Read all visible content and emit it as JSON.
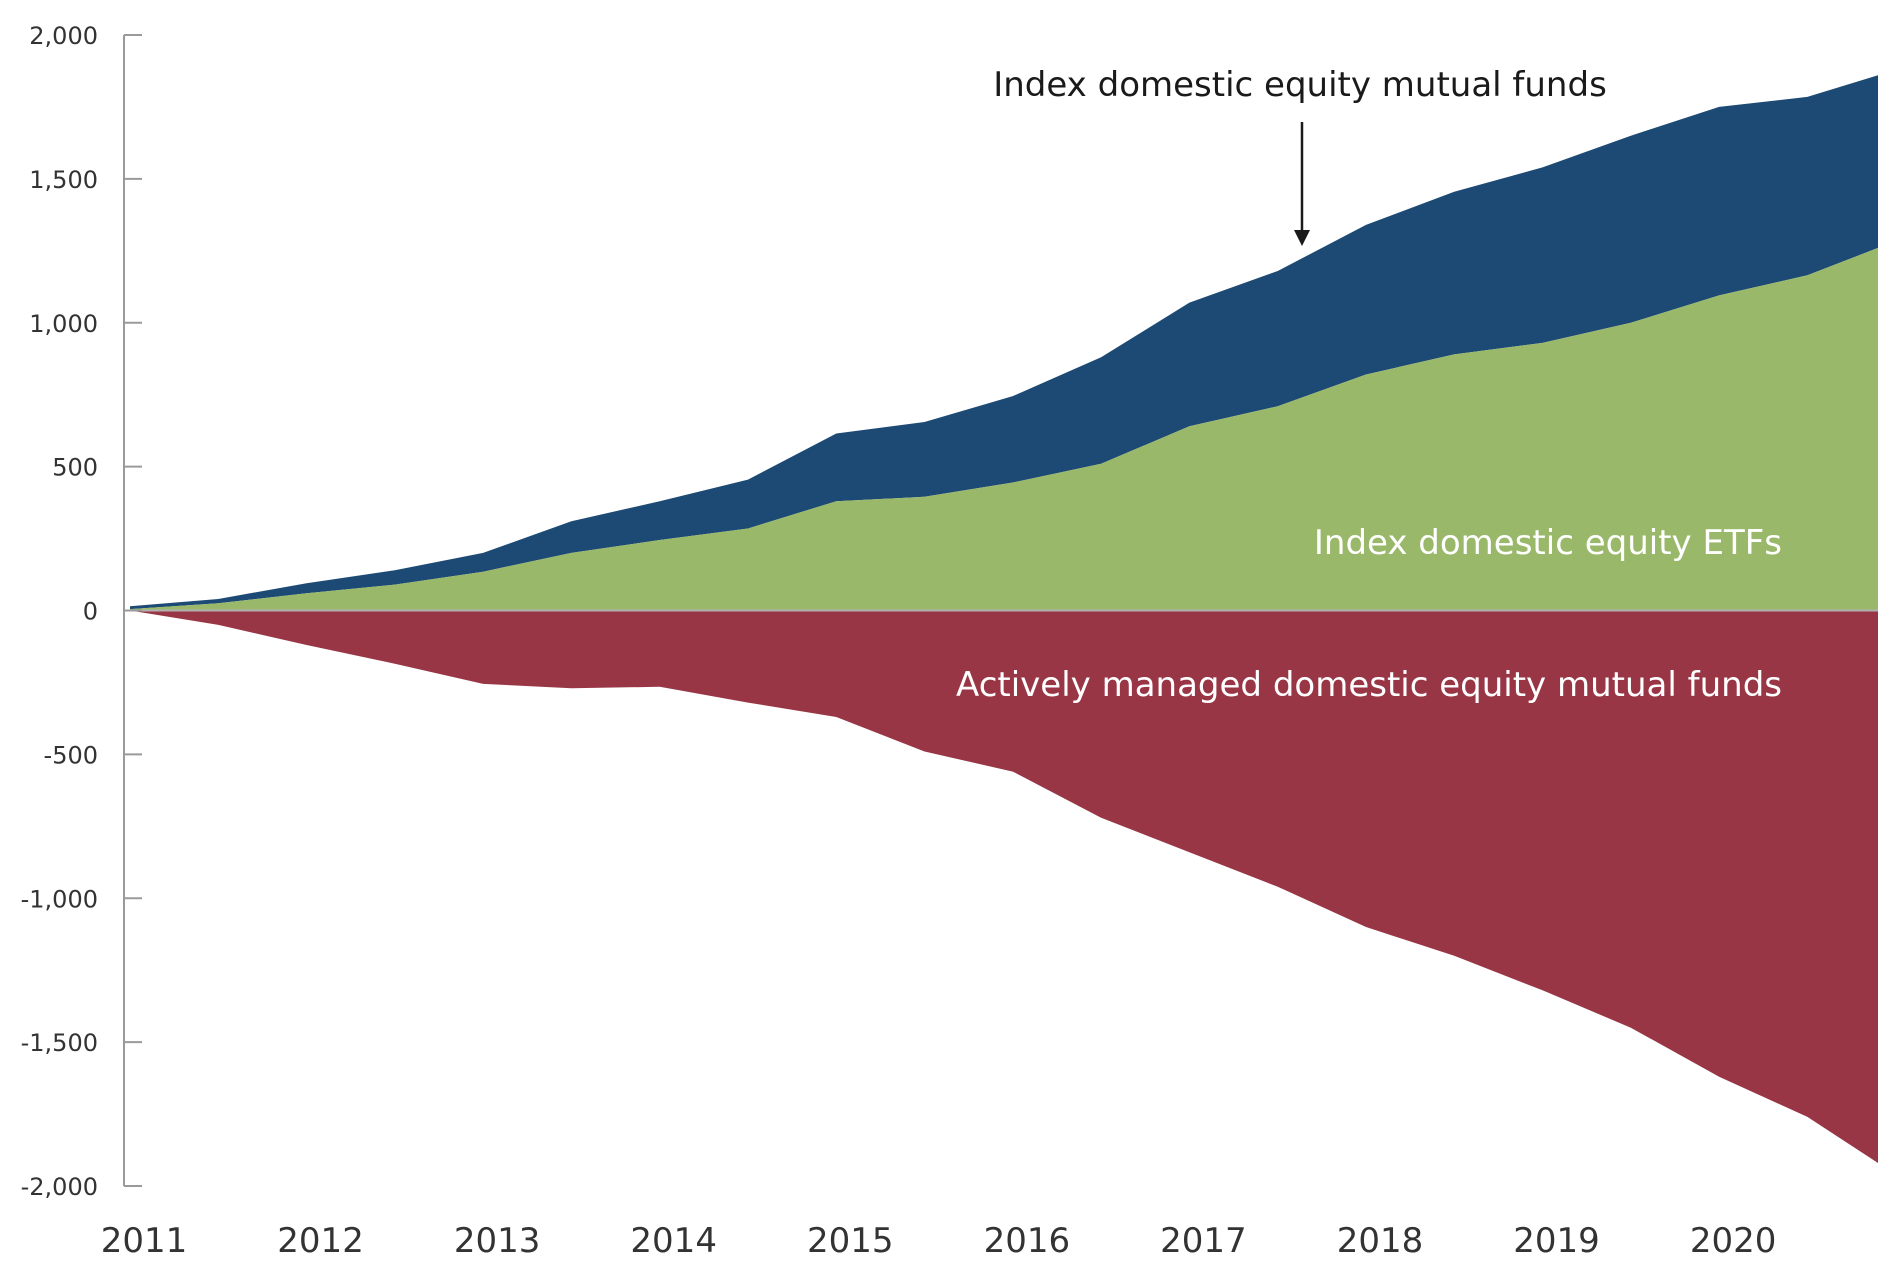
{
  "chart_data": {
    "type": "area",
    "x_ticks": [
      "2011",
      "2012",
      "2013",
      "2014",
      "2015",
      "2016",
      "2017",
      "2018",
      "2019",
      "2020"
    ],
    "y_ticks": [
      "2,000",
      "1,500",
      "1,000",
      "500",
      "0",
      "-500",
      "-1,000",
      "-1,500",
      "-2,000"
    ],
    "ylim": [
      -2000,
      2000
    ],
    "xlim": [
      2011.0,
      2020.9
    ],
    "stacked": true,
    "grid": false,
    "annotations": {
      "index_mutual_funds": "Index domestic equity mutual funds",
      "index_etfs": "Index domestic equity ETFs",
      "active_mutual_funds": "Actively managed domestic equity mutual funds"
    },
    "colors": {
      "index_mutual_funds": "#1c4a74",
      "index_etfs": "#9ab86a",
      "active_mutual_funds": "#993646"
    },
    "x": [
      2011.0,
      2011.5,
      2012.0,
      2012.5,
      2013.0,
      2013.5,
      2014.0,
      2014.5,
      2015.0,
      2015.5,
      2016.0,
      2016.5,
      2017.0,
      2017.5,
      2018.0,
      2018.5,
      2019.0,
      2019.5,
      2020.0,
      2020.5,
      2020.9
    ],
    "series": [
      {
        "key": "index_etfs",
        "values": [
          5,
          25,
          60,
          90,
          135,
          200,
          245,
          285,
          380,
          395,
          445,
          510,
          640,
          710,
          820,
          890,
          930,
          1000,
          1095,
          1165,
          1260
        ]
      },
      {
        "key": "index_mutual_funds",
        "values": [
          10,
          15,
          35,
          50,
          65,
          110,
          135,
          170,
          235,
          260,
          300,
          370,
          430,
          470,
          520,
          565,
          610,
          650,
          655,
          620,
          600
        ]
      },
      {
        "key": "active_mutual_funds",
        "values": [
          0,
          -50,
          -120,
          -185,
          -255,
          -270,
          -265,
          -320,
          -370,
          -490,
          -560,
          -720,
          -840,
          -960,
          -1100,
          -1200,
          -1320,
          -1450,
          -1620,
          -1760,
          -1920
        ]
      }
    ]
  }
}
